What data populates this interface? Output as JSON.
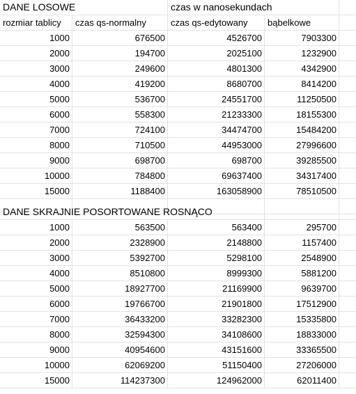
{
  "section1": {
    "title": "DANE LOSOWE",
    "units_note": "czas w nanosekundach",
    "headers": [
      "rozmiar tablicy",
      "czas qs-normalny",
      "czas qs-edytowany",
      "bąbelkowe"
    ],
    "rows": [
      [
        "1000",
        "676500",
        "4526700",
        "7903300"
      ],
      [
        "2000",
        "194700",
        "2025100",
        "1232900"
      ],
      [
        "3000",
        "249600",
        "4801300",
        "4342900"
      ],
      [
        "4000",
        "419200",
        "8680700",
        "8414200"
      ],
      [
        "5000",
        "536700",
        "24551700",
        "11250500"
      ],
      [
        "6000",
        "558300",
        "21233300",
        "18155300"
      ],
      [
        "7000",
        "724100",
        "34474700",
        "15484200"
      ],
      [
        "8000",
        "710500",
        "44953000",
        "27996600"
      ],
      [
        "9000",
        "698700",
        "698700",
        "39285500"
      ],
      [
        "10000",
        "784800",
        "69637400",
        "34317400"
      ],
      [
        "15000",
        "1188400",
        "163058900",
        "78510500"
      ]
    ]
  },
  "section2": {
    "title": "DANE SKRAJNIE POSORTOWANE ROSNĄCO",
    "rows": [
      [
        "1000",
        "563500",
        "563400",
        "295700"
      ],
      [
        "2000",
        "2328900",
        "2148800",
        "1157400"
      ],
      [
        "3000",
        "5392700",
        "5298100",
        "2548900"
      ],
      [
        "4000",
        "8510800",
        "8999300",
        "5881200"
      ],
      [
        "5000",
        "18927700",
        "21169900",
        "9639700"
      ],
      [
        "6000",
        "19766700",
        "21901800",
        "17512900"
      ],
      [
        "7000",
        "36433200",
        "33282300",
        "15335800"
      ],
      [
        "8000",
        "32594300",
        "34108600",
        "18833000"
      ],
      [
        "9000",
        "40954600",
        "43151600",
        "33365500"
      ],
      [
        "10000",
        "62069200",
        "51150400",
        "27206000"
      ],
      [
        "15000",
        "114237300",
        "124962000",
        "62011400"
      ]
    ]
  }
}
